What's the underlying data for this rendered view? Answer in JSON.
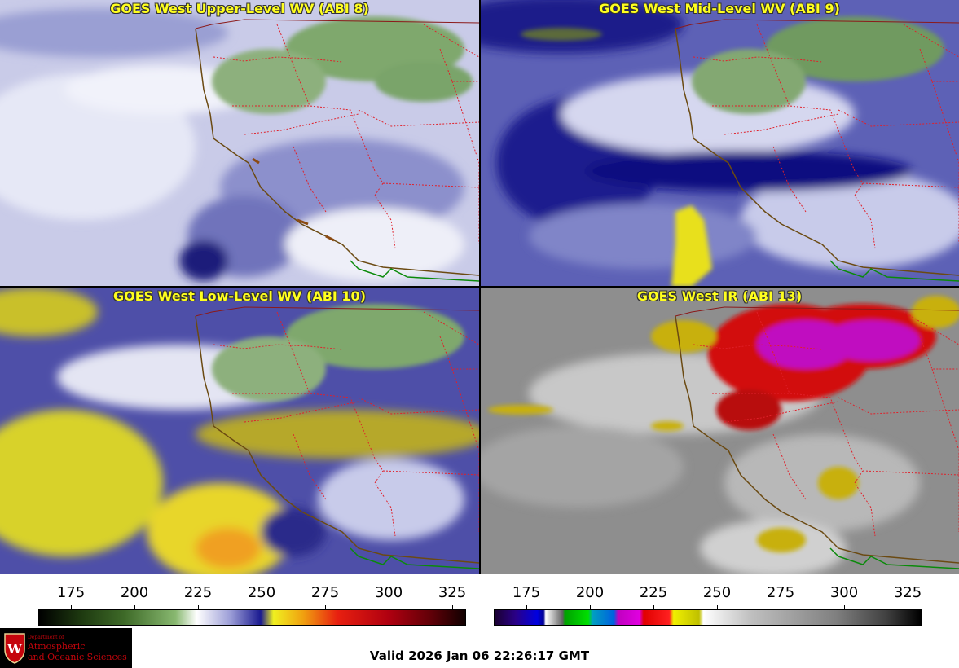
{
  "panels": [
    {
      "title": "GOES West Upper-Level WV (ABI 8)"
    },
    {
      "title": "GOES West Mid-Level WV (ABI 9)"
    },
    {
      "title": "GOES West Low-Level WV (ABI 10)"
    },
    {
      "title": "GOES West IR (ABI 13)"
    }
  ],
  "colorbars": {
    "wv": {
      "ticks": [
        "175",
        "200",
        "225",
        "250",
        "275",
        "300",
        "325"
      ]
    },
    "ir": {
      "ticks": [
        "175",
        "200",
        "225",
        "250",
        "275",
        "300",
        "325"
      ]
    }
  },
  "logo": {
    "line1": "Department of",
    "line2": "Atmospheric",
    "line3": "and Oceanic Sciences",
    "emblem": "W"
  },
  "valid_time": "Valid 2026 Jan 06 22:26:17 GMT",
  "colors": {
    "title_text": "#ffff1e",
    "coastline": "#6b4a12",
    "state_border": "#e0202a",
    "country_border": "#0a8a0a"
  }
}
